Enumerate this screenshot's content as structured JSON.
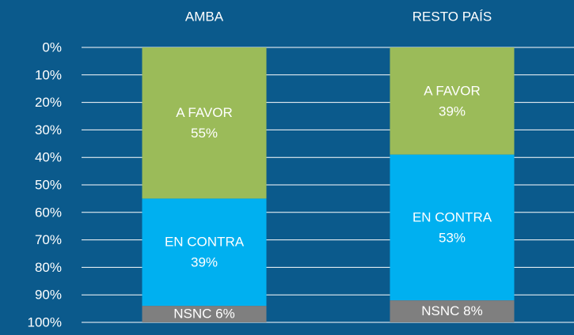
{
  "chart_data": {
    "type": "stacked_bar",
    "categories": [
      "AMBA",
      "RESTO PAÍS"
    ],
    "series": [
      {
        "name": "A FAVOR",
        "color": "#9bbb59",
        "values": [
          55,
          39
        ],
        "value_labels": [
          "55%",
          "39%"
        ]
      },
      {
        "name": "EN CONTRA",
        "color": "#00b0f0",
        "values": [
          39,
          53
        ],
        "value_labels": [
          "39%",
          "53%"
        ]
      },
      {
        "name": "NSNC",
        "color": "#7f7f7f",
        "values": [
          6,
          8
        ],
        "value_labels": [
          "6%",
          "8%"
        ]
      }
    ],
    "ylim": [
      0,
      100
    ],
    "y_inverted": true,
    "yticks": [
      {
        "value": 0,
        "label": "0%"
      },
      {
        "value": 10,
        "label": "10%"
      },
      {
        "value": 20,
        "label": "20%"
      },
      {
        "value": 30,
        "label": "30%"
      },
      {
        "value": 40,
        "label": "40%"
      },
      {
        "value": 50,
        "label": "50%"
      },
      {
        "value": 60,
        "label": "60%"
      },
      {
        "value": 70,
        "label": "70%"
      },
      {
        "value": 80,
        "label": "80%"
      },
      {
        "value": 90,
        "label": "90%"
      },
      {
        "value": 100,
        "label": "100%"
      }
    ],
    "grid": true
  }
}
